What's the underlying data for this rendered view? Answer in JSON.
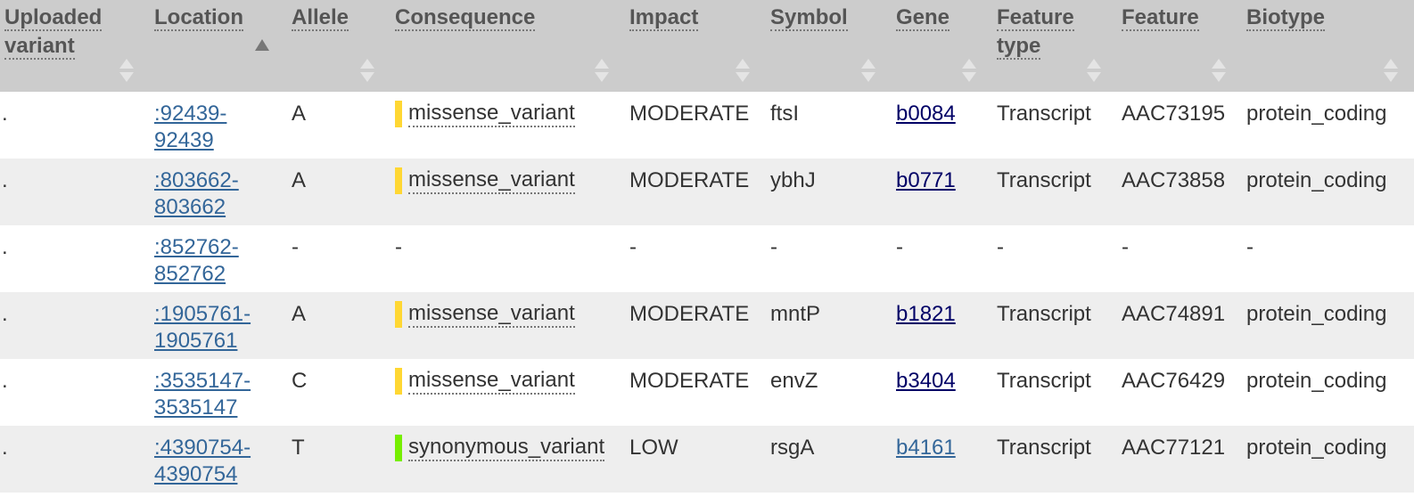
{
  "table": {
    "headers": [
      {
        "key": "uploaded",
        "line1": "Uploaded",
        "line2": "variant",
        "sort": "both"
      },
      {
        "key": "location",
        "line1": "Location",
        "line2": "",
        "sort": "asc"
      },
      {
        "key": "allele",
        "line1": "Allele",
        "line2": "",
        "sort": "both"
      },
      {
        "key": "consequence",
        "line1": "Consequence",
        "line2": "",
        "sort": "both"
      },
      {
        "key": "impact",
        "line1": "Impact",
        "line2": "",
        "sort": "both"
      },
      {
        "key": "symbol",
        "line1": "Symbol",
        "line2": "",
        "sort": "both"
      },
      {
        "key": "gene",
        "line1": "Gene",
        "line2": "",
        "sort": "both"
      },
      {
        "key": "feature_type",
        "line1": "Feature",
        "line2": "type",
        "sort": "both"
      },
      {
        "key": "feature",
        "line1": "Feature",
        "line2": "",
        "sort": "both"
      },
      {
        "key": "biotype",
        "line1": "Biotype",
        "line2": "",
        "sort": "both"
      }
    ],
    "rows": [
      {
        "uploaded": ".",
        "location_start": ":92439-",
        "location_end": "92439",
        "allele": "A",
        "consequence": "missense_variant",
        "consequence_color": "#ffd733",
        "impact": "MODERATE",
        "symbol": "ftsI",
        "gene": "b0084",
        "gene_visited": false,
        "feature_type": "Transcript",
        "feature": "AAC73195",
        "biotype": "protein_coding"
      },
      {
        "uploaded": ".",
        "location_start": ":803662-",
        "location_end": "803662",
        "allele": "A",
        "consequence": "missense_variant",
        "consequence_color": "#ffd733",
        "impact": "MODERATE",
        "symbol": "ybhJ",
        "gene": "b0771",
        "gene_visited": false,
        "feature_type": "Transcript",
        "feature": "AAC73858",
        "biotype": "protein_coding"
      },
      {
        "uploaded": ".",
        "location_start": ":852762-",
        "location_end": "852762",
        "allele": "-",
        "consequence": "-",
        "consequence_color": "",
        "impact": "-",
        "symbol": "-",
        "gene": "-",
        "gene_visited": false,
        "feature_type": "-",
        "feature": "-",
        "biotype": "-"
      },
      {
        "uploaded": ".",
        "location_start": ":1905761-",
        "location_end": "1905761",
        "allele": "A",
        "consequence": "missense_variant",
        "consequence_color": "#ffd733",
        "impact": "MODERATE",
        "symbol": "mntP",
        "gene": "b1821",
        "gene_visited": false,
        "feature_type": "Transcript",
        "feature": "AAC74891",
        "biotype": "protein_coding"
      },
      {
        "uploaded": ".",
        "location_start": ":3535147-",
        "location_end": "3535147",
        "allele": "C",
        "consequence": "missense_variant",
        "consequence_color": "#ffd733",
        "impact": "MODERATE",
        "symbol": "envZ",
        "gene": "b3404",
        "gene_visited": false,
        "feature_type": "Transcript",
        "feature": "AAC76429",
        "biotype": "protein_coding"
      },
      {
        "uploaded": ".",
        "location_start": ":4390754-",
        "location_end": "4390754",
        "allele": "T",
        "consequence": "synonymous_variant",
        "consequence_color": "#76ee00",
        "impact": "LOW",
        "symbol": "rsgA",
        "gene": "b4161",
        "gene_visited": true,
        "feature_type": "Transcript",
        "feature": "AAC77121",
        "biotype": "protein_coding"
      }
    ]
  }
}
